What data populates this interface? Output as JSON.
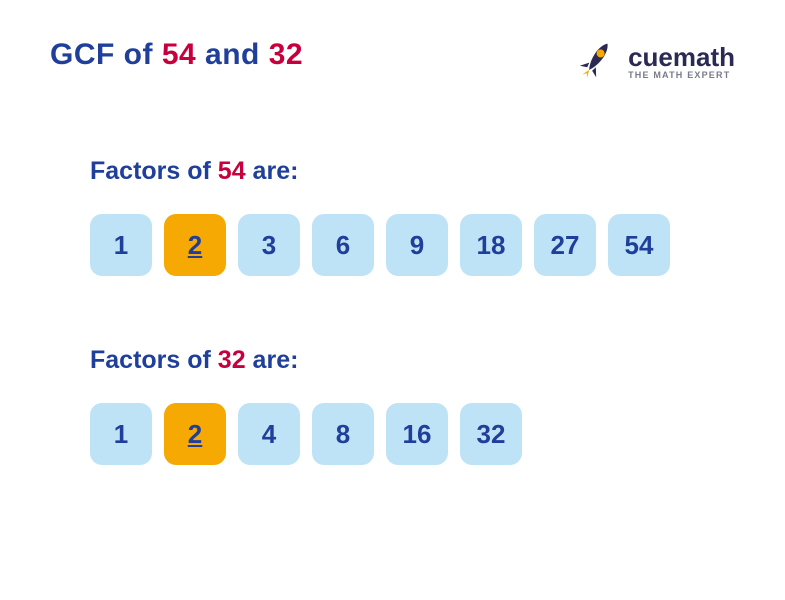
{
  "colors": {
    "title_blue": "#1f3f9a",
    "highlight_red": "#c7003d",
    "chip_bg_normal": "#bfe3f6",
    "chip_bg_highlight": "#f6a903",
    "chip_text": "#1f3f9a",
    "logo_dark": "#2a2a54",
    "logo_tagline": "#7a7a8a",
    "rocket_body": "#2a2a54",
    "rocket_window": "#f6a903",
    "rocket_flame": "#f6a903"
  },
  "title": {
    "prefix": "GCF of ",
    "num1": "54",
    "mid": " and ",
    "num2": "32"
  },
  "logo": {
    "brand_prefix": "cue",
    "brand_suffix": "math",
    "tagline": "THE MATH EXPERT"
  },
  "sections": [
    {
      "heading_prefix": "Factors of ",
      "heading_num": "54",
      "heading_suffix": " are:",
      "factors": [
        {
          "v": "1",
          "hl": false
        },
        {
          "v": "2",
          "hl": true
        },
        {
          "v": "3",
          "hl": false
        },
        {
          "v": "6",
          "hl": false
        },
        {
          "v": "9",
          "hl": false
        },
        {
          "v": "18",
          "hl": false
        },
        {
          "v": "27",
          "hl": false
        },
        {
          "v": "54",
          "hl": false
        }
      ]
    },
    {
      "heading_prefix": "Factors of ",
      "heading_num": "32",
      "heading_suffix": " are:",
      "factors": [
        {
          "v": "1",
          "hl": false
        },
        {
          "v": "2",
          "hl": true
        },
        {
          "v": "4",
          "hl": false
        },
        {
          "v": "8",
          "hl": false
        },
        {
          "v": "16",
          "hl": false
        },
        {
          "v": "32",
          "hl": false
        }
      ]
    }
  ],
  "style": {
    "chip_width": 62,
    "chip_height": 62,
    "chip_radius": 12,
    "chip_fontsize": 26,
    "title_fontsize": 30,
    "heading_fontsize": 25
  }
}
